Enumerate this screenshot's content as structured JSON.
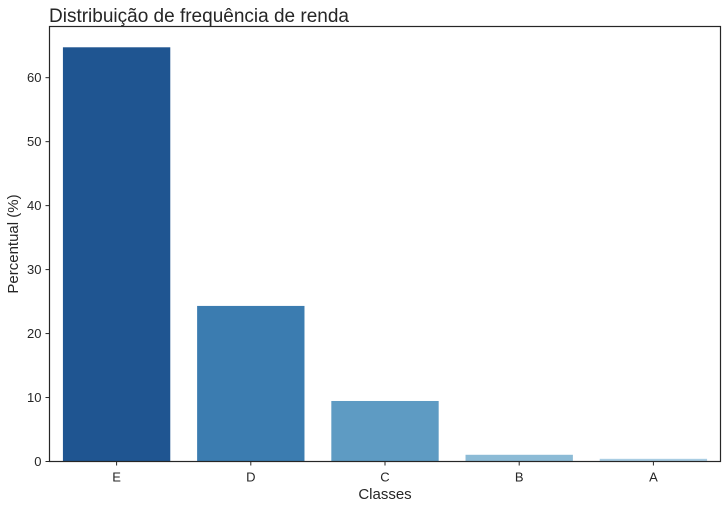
{
  "chart_data": {
    "type": "bar",
    "title": "Distribuição de frequência de renda",
    "xlabel": "Classes",
    "ylabel": "Percentual (%)",
    "categories": [
      "E",
      "D",
      "C",
      "B",
      "A"
    ],
    "values": [
      64.75,
      24.32,
      9.46,
      1.05,
      0.42
    ],
    "ylim": [
      0,
      68
    ],
    "yticks": [
      "0",
      "10",
      "20",
      "30",
      "40",
      "50",
      "60"
    ],
    "grid": false,
    "colors": [
      "#1f5591",
      "#3b7cb0",
      "#5e9bc3",
      "#8cbbd6",
      "#a9cde3"
    ]
  }
}
